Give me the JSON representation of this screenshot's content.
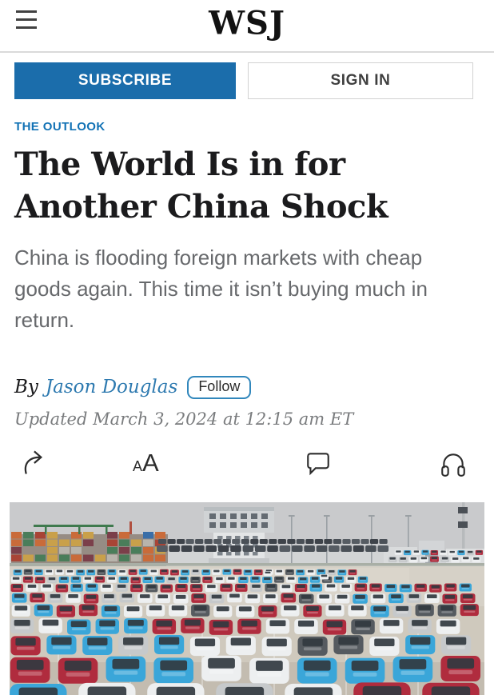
{
  "header": {
    "logo": "WSJ"
  },
  "auth": {
    "subscribe": "SUBSCRIBE",
    "signin": "SIGN IN"
  },
  "article": {
    "category": "THE OUTLOOK",
    "headline": "The World Is in for Another China Shock",
    "dek": "China is flooding foreign markets with cheap goods again. This time it isn’t buying much in return.",
    "byline_prefix": "By",
    "author": "Jason Douglas",
    "follow": "Follow",
    "updated": "Updated March 3, 2024 at 12:15 am ET"
  },
  "toolbar": {
    "aa_small": "A",
    "aa_big": "A"
  },
  "colors": {
    "accent_blue": "#1272b5",
    "subscribe_blue": "#1b6dab",
    "link_blue": "#2e7ab0",
    "headline_black": "#1b1b1d",
    "dek_gray": "#67696c"
  },
  "photo": {
    "description": "Elevated view of hundreds of new cars in red, blue, white and gray parked in dense rows at a port lot, with stacked shipping containers, cranes, light masts and a control tower building in the background under a gray sky",
    "sky": "#c9cacc",
    "ground": "#cfc9bd",
    "car_colors": [
      "#b02c3e",
      "#3aa6d9",
      "#edeff0",
      "#c6c9cb",
      "#565b60"
    ],
    "car_weights": [
      0.26,
      0.22,
      0.3,
      0.12,
      0.1
    ],
    "dark_cars": [
      "#3e434a",
      "#4a5057",
      "#565c63"
    ],
    "container_colors": [
      "#a84436",
      "#3a6ea8",
      "#c9a04a",
      "#b8b4ac",
      "#7b3f4a",
      "#4a7d5a",
      "#c96b3a"
    ]
  }
}
